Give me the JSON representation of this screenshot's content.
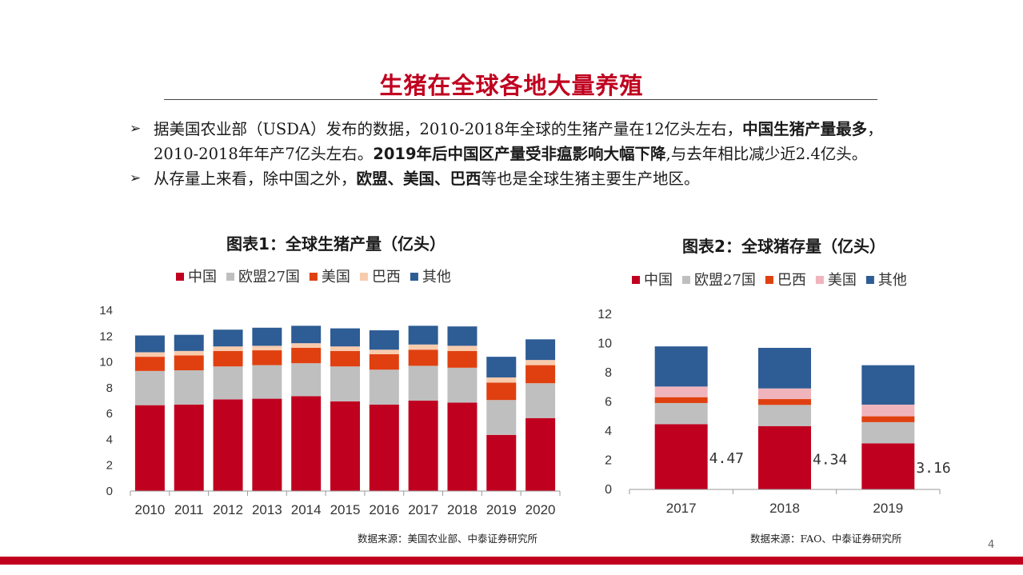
{
  "slide": {
    "title": "生猪在全球各地大量养殖",
    "page_number": "4",
    "bullets": [
      {
        "segments": [
          {
            "text": "据美国农业部（USDA）发布的数据，2010-2018年全球的生猪产量在12亿头左右，",
            "bold": false
          },
          {
            "text": "中国生猪产量最多",
            "bold": true
          },
          {
            "text": "，2010-2018年年产7亿头左右。",
            "bold": false
          },
          {
            "text": "2019年后中国区产量受非瘟影响大幅下降",
            "bold": true
          },
          {
            "text": ",与去年相比减少近2.4亿头。",
            "bold": false
          }
        ]
      },
      {
        "segments": [
          {
            "text": "从存量上来看，除中国之外，",
            "bold": false
          },
          {
            "text": "欧盟、美国、巴西",
            "bold": true
          },
          {
            "text": "等也是全球生猪主要生产地区。",
            "bold": false
          }
        ]
      }
    ],
    "bullet_marker": "➢"
  },
  "charts": {
    "chart1_title": "图表1：全球生猪产量（亿头）",
    "chart2_title": "图表2：全球猪存量（亿头）",
    "chart1_source": "数据来源：美国农业部、中泰证券研究所",
    "chart2_source": "数据来源：FAO、中泰证券研究所"
  },
  "chart_data": [
    {
      "type": "bar",
      "stacked": true,
      "title": "图表1：全球生猪产量（亿头）",
      "categories": [
        "2010",
        "2011",
        "2012",
        "2013",
        "2014",
        "2015",
        "2016",
        "2017",
        "2018",
        "2019",
        "2020"
      ],
      "series": [
        {
          "name": "中国",
          "color": "#c0001f",
          "values": [
            6.65,
            6.7,
            7.1,
            7.15,
            7.35,
            6.95,
            6.7,
            7.0,
            6.85,
            4.35,
            5.65
          ]
        },
        {
          "name": "欧盟27国",
          "color": "#bfbfbf",
          "values": [
            2.65,
            2.65,
            2.55,
            2.6,
            2.55,
            2.7,
            2.7,
            2.7,
            2.7,
            2.7,
            2.7
          ]
        },
        {
          "name": "美国",
          "color": "#e04010",
          "values": [
            1.1,
            1.15,
            1.2,
            1.15,
            1.2,
            1.2,
            1.2,
            1.25,
            1.3,
            1.35,
            1.4
          ]
        },
        {
          "name": "巴西",
          "color": "#f8cbad",
          "values": [
            0.35,
            0.35,
            0.35,
            0.35,
            0.35,
            0.35,
            0.35,
            0.4,
            0.4,
            0.4,
            0.4
          ]
        },
        {
          "name": "其他",
          "color": "#2e5c94",
          "values": [
            1.3,
            1.25,
            1.3,
            1.4,
            1.35,
            1.4,
            1.5,
            1.45,
            1.5,
            1.6,
            1.6
          ]
        }
      ],
      "ylim": [
        0,
        14
      ],
      "yticks": [
        0,
        2,
        4,
        6,
        8,
        10,
        12,
        14
      ],
      "legend": "top",
      "grid": false
    },
    {
      "type": "bar",
      "stacked": true,
      "title": "图表2：全球猪存量（亿头）",
      "categories": [
        "2017",
        "2018",
        "2019"
      ],
      "series": [
        {
          "name": "中国",
          "color": "#c0001f",
          "values": [
            4.47,
            4.34,
            3.16
          ],
          "labels": [
            "4.47",
            "4.34",
            "3.16"
          ]
        },
        {
          "name": "欧盟27国",
          "color": "#bfbfbf",
          "values": [
            1.45,
            1.45,
            1.45
          ]
        },
        {
          "name": "巴西",
          "color": "#e04010",
          "values": [
            0.4,
            0.4,
            0.4
          ]
        },
        {
          "name": "美国",
          "color": "#f0b4bc",
          "values": [
            0.73,
            0.73,
            0.8
          ]
        },
        {
          "name": "其他",
          "color": "#2e5c94",
          "values": [
            2.75,
            2.78,
            2.7
          ]
        }
      ],
      "ylim": [
        0,
        12
      ],
      "yticks": [
        0,
        2,
        4,
        6,
        8,
        10,
        12
      ],
      "legend": "top",
      "grid": false
    }
  ]
}
